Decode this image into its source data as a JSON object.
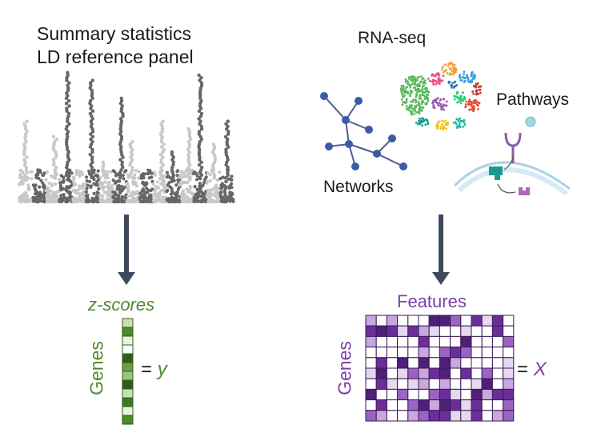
{
  "left_panel": {
    "title_line1": "Summary statistics",
    "title_line2": "LD reference panel",
    "output_label": "z-scores",
    "genes_label": "Genes",
    "equals": "= ",
    "symbol": "y",
    "zscore_column_colors": [
      "#c9e0b7",
      "#4f8a2b",
      "#e8f2df",
      "#ffffff",
      "#2e5f19",
      "#6aa047",
      "#9bc47c",
      "#2e5f19",
      "#c9e0b7",
      "#3f7a23",
      "#e8f2df",
      "#4f8a2b"
    ]
  },
  "right_panel": {
    "rnaseq_label": "RNA-seq",
    "pathways_label": "Pathways",
    "networks_label": "Networks",
    "output_label": "Features",
    "genes_label": "Genes",
    "equals": "= ",
    "symbol": "X"
  },
  "colors": {
    "arrow": "#3e4a5c",
    "manhattan_dark": "#666666",
    "manhattan_light": "#c8c8c8",
    "network_node": "#3b5ba5",
    "green": "#4f8a2b",
    "purple": "#7b3fa6"
  }
}
